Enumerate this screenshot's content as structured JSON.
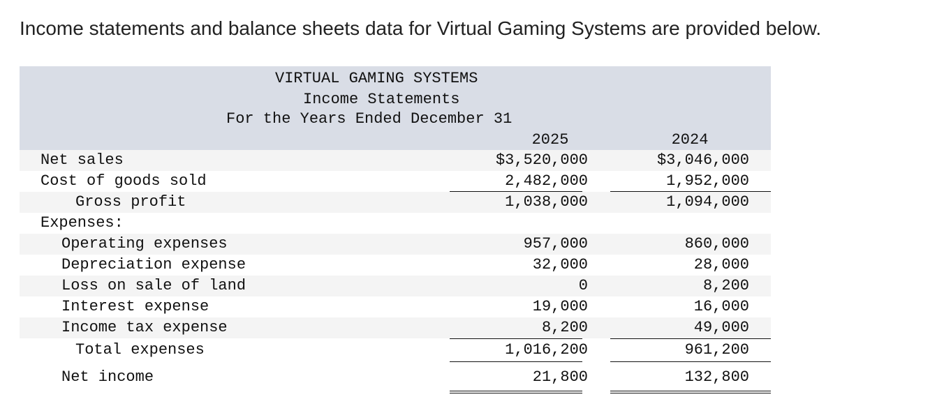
{
  "intro": "Income statements and balance sheets data for Virtual Gaming Systems are provided below.",
  "statement": {
    "company": "VIRTUAL GAMING SYSTEMS",
    "title": "Income Statements",
    "period": "For the Years Ended December 31",
    "years": [
      "2025",
      "2024"
    ],
    "rows": {
      "net_sales": {
        "label": "Net sales",
        "y2025": "$3,520,000",
        "y2024": "$3,046,000"
      },
      "cogs": {
        "label": "Cost of goods sold",
        "y2025": "2,482,000",
        "y2024": "1,952,000"
      },
      "gross_profit": {
        "label": "Gross profit",
        "y2025": "1,038,000",
        "y2024": "1,094,000"
      },
      "expenses_header": {
        "label": "Expenses:"
      },
      "operating": {
        "label": "Operating expenses",
        "y2025": "957,000",
        "y2024": "860,000"
      },
      "depreciation": {
        "label": "Depreciation expense",
        "y2025": "32,000",
        "y2024": "28,000"
      },
      "loss_land": {
        "label": "Loss on sale of land",
        "y2025": "0",
        "y2024": "8,200"
      },
      "interest": {
        "label": "Interest expense",
        "y2025": "19,000",
        "y2024": "16,000"
      },
      "income_tax": {
        "label": "Income tax expense",
        "y2025": "8,200",
        "y2024": "49,000"
      },
      "total_expenses": {
        "label": "Total expenses",
        "y2025": "1,016,200",
        "y2024": "961,200"
      },
      "net_income": {
        "label": "Net income",
        "y2025": "21,800",
        "y2024": "132,800"
      }
    }
  }
}
